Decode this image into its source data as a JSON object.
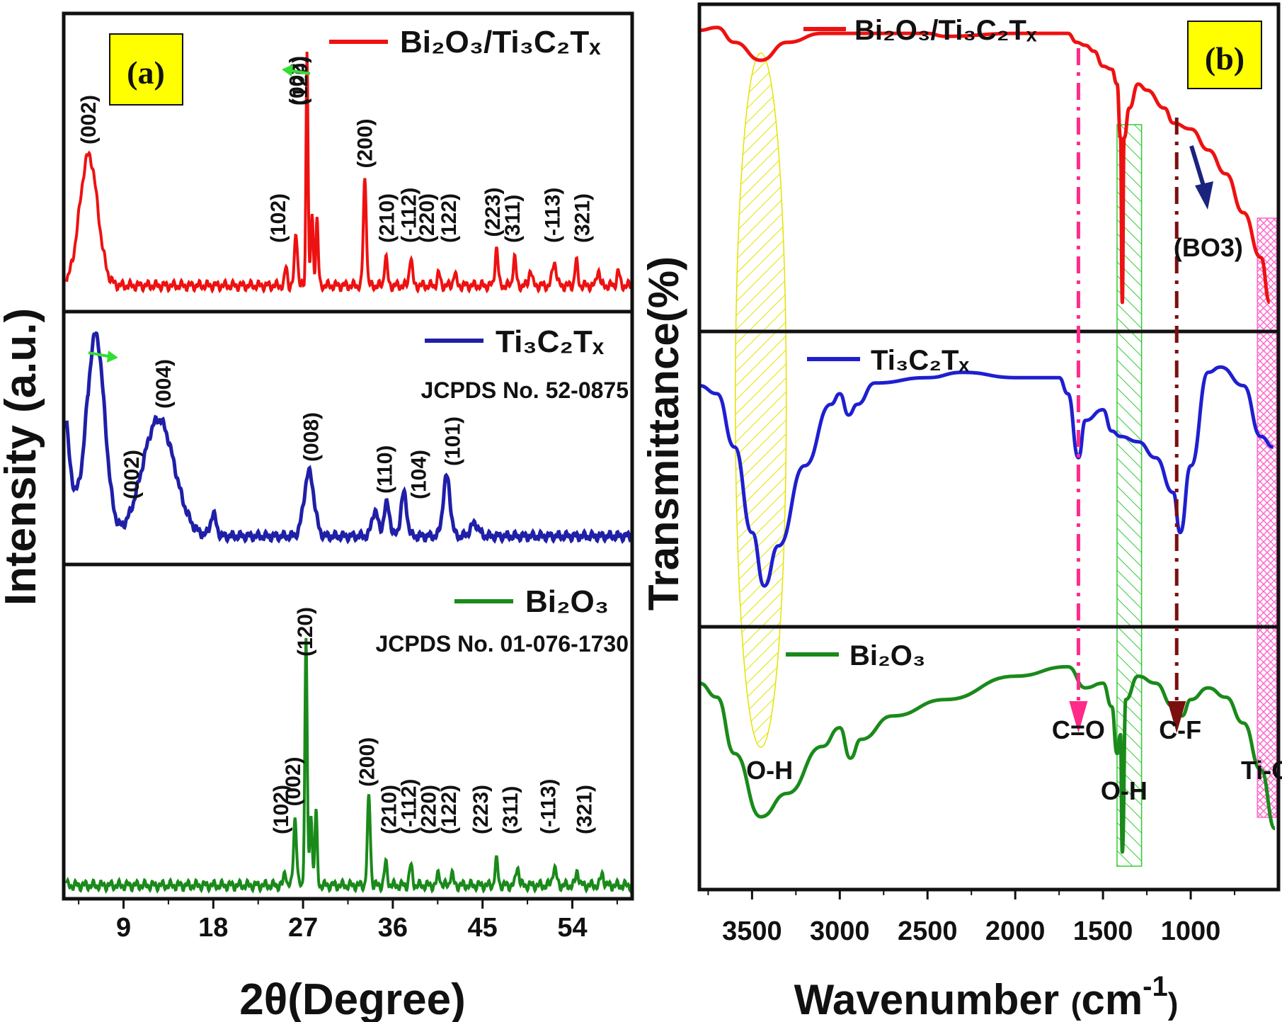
{
  "chart_data": [
    {
      "panel_label": "(a)",
      "type": "line",
      "xlabel": "2θ(Degree)",
      "ylabel": "Intensity (a.u.)",
      "xlim": [
        3,
        60
      ],
      "x_ticks": [
        "9",
        "18",
        "27",
        "36",
        "45",
        "54"
      ],
      "subplots": [
        {
          "series_label": "Bi₂O₃/Ti₃C₂Tₓ",
          "reference": "",
          "color": "#ee1111",
          "baseline": 0.05,
          "peaks": [
            [
              5.5,
              0.55,
              0.9
            ],
            [
              25.3,
              0.08,
              0.12
            ],
            [
              26.3,
              0.22,
              0.15
            ],
            [
              27.4,
              1.0,
              0.1
            ],
            [
              27.9,
              0.3,
              0.12
            ],
            [
              28.4,
              0.28,
              0.12
            ],
            [
              33.2,
              0.45,
              0.15
            ],
            [
              35.3,
              0.12,
              0.15
            ],
            [
              37.8,
              0.12,
              0.15
            ],
            [
              40.6,
              0.05,
              0.15
            ],
            [
              42.2,
              0.05,
              0.15
            ],
            [
              46.4,
              0.16,
              0.15
            ],
            [
              48.2,
              0.12,
              0.15
            ],
            [
              49.8,
              0.07,
              0.15
            ],
            [
              52.2,
              0.1,
              0.2
            ],
            [
              54.4,
              0.1,
              0.15
            ],
            [
              56.6,
              0.07,
              0.15
            ],
            [
              58.6,
              0.06,
              0.15
            ]
          ],
          "annotations": [
            {
              "text": "(002)",
              "x": 5.5
            },
            {
              "text": "(102)",
              "x": 24.5
            },
            {
              "text": "(002)",
              "x": 26.4
            },
            {
              "text": "(120)",
              "x": 26.7
            },
            {
              "text": "(200)",
              "x": 33.2
            },
            {
              "text": "(210)",
              "x": 35.4
            },
            {
              "text": "(-112)",
              "x": 37.6
            },
            {
              "text": "(220)",
              "x": 39.4
            },
            {
              "text": "(122)",
              "x": 41.6
            },
            {
              "text": "(223)",
              "x": 46.0
            },
            {
              "text": "(311)",
              "x": 48.0
            },
            {
              "text": "(-113)",
              "x": 52.0
            },
            {
              "text": "(321)",
              "x": 55.0
            }
          ]
        },
        {
          "series_label": "Ti₃C₂Tₓ",
          "reference": "JCPDS No. 52-0875",
          "color": "#1f1fa8",
          "baseline": 0.06,
          "peaks": [
            [
              6.2,
              0.95,
              0.9
            ],
            [
              12.5,
              0.55,
              1.6
            ],
            [
              18.0,
              0.1,
              0.3
            ],
            [
              27.6,
              0.3,
              0.5
            ],
            [
              34.2,
              0.12,
              0.3
            ],
            [
              35.4,
              0.15,
              0.3
            ],
            [
              37.1,
              0.2,
              0.3
            ],
            [
              41.4,
              0.28,
              0.35
            ],
            [
              44.2,
              0.06,
              0.4
            ]
          ],
          "annotations": [
            {
              "text": "(002)",
              "x": 9.8
            },
            {
              "text": "(004)",
              "x": 13.0
            },
            {
              "text": "(008)",
              "x": 27.8
            },
            {
              "text": "(110)",
              "x": 35.2
            },
            {
              "text": "(104)",
              "x": 38.6
            },
            {
              "text": "(101)",
              "x": 42.0
            }
          ]
        },
        {
          "series_label": "Bi₂O₃",
          "reference": "JCPDS No. 01-076-1730",
          "color": "#1a8a1a",
          "baseline": 0.02,
          "peaks": [
            [
              25.2,
              0.06,
              0.12
            ],
            [
              26.2,
              0.28,
              0.15
            ],
            [
              27.3,
              1.0,
              0.12
            ],
            [
              27.8,
              0.3,
              0.12
            ],
            [
              28.3,
              0.3,
              0.12
            ],
            [
              33.6,
              0.36,
              0.15
            ],
            [
              35.3,
              0.09,
              0.15
            ],
            [
              37.8,
              0.08,
              0.15
            ],
            [
              40.6,
              0.05,
              0.15
            ],
            [
              41.9,
              0.05,
              0.15
            ],
            [
              46.4,
              0.1,
              0.15
            ],
            [
              48.5,
              0.08,
              0.15
            ],
            [
              52.2,
              0.07,
              0.2
            ],
            [
              54.5,
              0.06,
              0.15
            ],
            [
              57.0,
              0.05,
              0.15
            ]
          ],
          "annotations": [
            {
              "text": "(102)",
              "x": 24.8
            },
            {
              "text": "(002)",
              "x": 26.0
            },
            {
              "text": "(120)",
              "x": 27.2
            },
            {
              "text": "(200)",
              "x": 33.4
            },
            {
              "text": "(210)",
              "x": 35.6
            },
            {
              "text": "(-112)",
              "x": 37.6
            },
            {
              "text": "(220)",
              "x": 39.6
            },
            {
              "text": "(122)",
              "x": 41.6
            },
            {
              "text": "(223)",
              "x": 44.8
            },
            {
              "text": "(311)",
              "x": 47.8
            },
            {
              "text": "(-113)",
              "x": 51.6
            },
            {
              "text": "(321)",
              "x": 55.2
            }
          ]
        }
      ]
    },
    {
      "panel_label": "(b)",
      "type": "line",
      "xlabel": "Wavenumber (cm-1)",
      "xlabel_main": "Wavenumber ",
      "xlabel_unit": "cm",
      "xlabel_sup": "-1",
      "ylabel": "Transmittance(%)",
      "xlim": [
        3800,
        500
      ],
      "x_ticks": [
        "3500",
        "3000",
        "2500",
        "2000",
        "1500",
        "1000"
      ],
      "x_tick_values": [
        3500,
        3000,
        2500,
        2000,
        1500,
        1000
      ],
      "subplots": [
        {
          "series_label": "Bi₂O₃/Ti₃C₂Tₓ",
          "color": "#ee1111",
          "points": [
            [
              3800,
              0.96
            ],
            [
              3700,
              0.97
            ],
            [
              3600,
              0.92
            ],
            [
              3450,
              0.86
            ],
            [
              3300,
              0.92
            ],
            [
              3100,
              0.95
            ],
            [
              3000,
              0.95
            ],
            [
              2500,
              0.95
            ],
            [
              2400,
              0.94
            ],
            [
              2000,
              0.95
            ],
            [
              1700,
              0.95
            ],
            [
              1650,
              0.92
            ],
            [
              1600,
              0.91
            ],
            [
              1550,
              0.89
            ],
            [
              1500,
              0.84
            ],
            [
              1450,
              0.83
            ],
            [
              1420,
              0.78
            ],
            [
              1400,
              0.6
            ],
            [
              1390,
              0.05
            ],
            [
              1380,
              0.6
            ],
            [
              1350,
              0.7
            ],
            [
              1300,
              0.78
            ],
            [
              1250,
              0.76
            ],
            [
              1150,
              0.7
            ],
            [
              1100,
              0.65
            ],
            [
              1000,
              0.63
            ],
            [
              900,
              0.56
            ],
            [
              800,
              0.48
            ],
            [
              700,
              0.35
            ],
            [
              600,
              0.2
            ],
            [
              550,
              0.05
            ]
          ]
        },
        {
          "series_label": "Ti₃C₂Tₓ",
          "color": "#1f1fd0",
          "points": [
            [
              3800,
              0.85
            ],
            [
              3700,
              0.82
            ],
            [
              3600,
              0.62
            ],
            [
              3500,
              0.3
            ],
            [
              3430,
              0.1
            ],
            [
              3350,
              0.25
            ],
            [
              3200,
              0.55
            ],
            [
              3050,
              0.78
            ],
            [
              3000,
              0.82
            ],
            [
              2950,
              0.74
            ],
            [
              2900,
              0.78
            ],
            [
              2800,
              0.86
            ],
            [
              2500,
              0.88
            ],
            [
              2300,
              0.9
            ],
            [
              2000,
              0.88
            ],
            [
              1750,
              0.88
            ],
            [
              1700,
              0.82
            ],
            [
              1640,
              0.58
            ],
            [
              1600,
              0.72
            ],
            [
              1500,
              0.76
            ],
            [
              1450,
              0.68
            ],
            [
              1400,
              0.66
            ],
            [
              1300,
              0.64
            ],
            [
              1200,
              0.58
            ],
            [
              1100,
              0.45
            ],
            [
              1060,
              0.3
            ],
            [
              1000,
              0.55
            ],
            [
              900,
              0.9
            ],
            [
              830,
              0.92
            ],
            [
              700,
              0.85
            ],
            [
              600,
              0.66
            ],
            [
              530,
              0.62
            ]
          ]
        },
        {
          "series_label": "Bi₂O₃",
          "color": "#1a8a1a",
          "points": [
            [
              3800,
              0.82
            ],
            [
              3700,
              0.76
            ],
            [
              3600,
              0.52
            ],
            [
              3450,
              0.25
            ],
            [
              3300,
              0.35
            ],
            [
              3100,
              0.55
            ],
            [
              3000,
              0.63
            ],
            [
              2940,
              0.5
            ],
            [
              2880,
              0.58
            ],
            [
              2700,
              0.68
            ],
            [
              2400,
              0.75
            ],
            [
              2000,
              0.85
            ],
            [
              1700,
              0.89
            ],
            [
              1600,
              0.8
            ],
            [
              1500,
              0.82
            ],
            [
              1450,
              0.72
            ],
            [
              1420,
              0.52
            ],
            [
              1400,
              0.6
            ],
            [
              1390,
              0.1
            ],
            [
              1370,
              0.75
            ],
            [
              1300,
              0.85
            ],
            [
              1200,
              0.82
            ],
            [
              1100,
              0.72
            ],
            [
              1050,
              0.68
            ],
            [
              1000,
              0.75
            ],
            [
              900,
              0.8
            ],
            [
              800,
              0.76
            ],
            [
              700,
              0.65
            ],
            [
              600,
              0.45
            ],
            [
              520,
              0.2
            ]
          ]
        }
      ],
      "annotations": [
        {
          "text": "O-H",
          "x": 3400
        },
        {
          "text": "C=O",
          "x": 1640
        },
        {
          "text": "O-H",
          "x": 1380
        },
        {
          "text": "C-F",
          "x": 1060
        },
        {
          "text": "Ti-O",
          "x": 570
        },
        {
          "text": "(BO3)",
          "x": 900
        }
      ],
      "shaded_regions": [
        {
          "type": "ellipse",
          "label": "O-H",
          "x_center": 3450,
          "color": "#e3e300"
        },
        {
          "type": "rect",
          "label": "O-H",
          "x_range": [
            1420,
            1280
          ],
          "color": "#33cc33"
        },
        {
          "type": "rect",
          "label": "Ti-O",
          "x_range": [
            620,
            510
          ],
          "color": "#ff66cc"
        }
      ],
      "markers": [
        {
          "label": "C=O",
          "x": 1640,
          "color": "#ff2a8a"
        },
        {
          "label": "C-F",
          "x": 1080,
          "color": "#7a0f0f"
        }
      ]
    }
  ]
}
